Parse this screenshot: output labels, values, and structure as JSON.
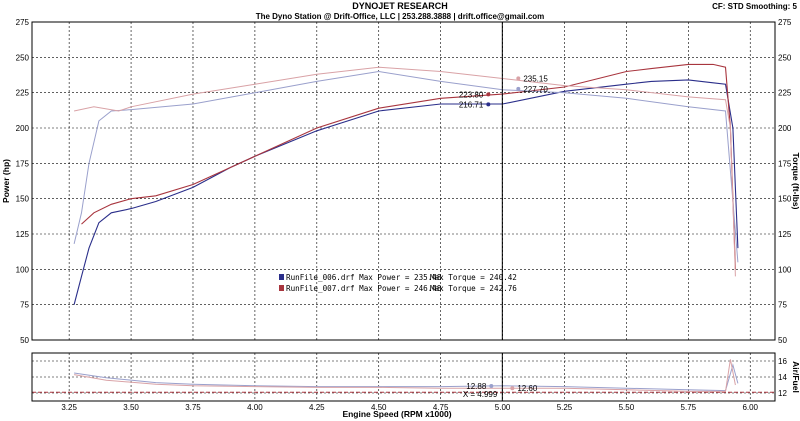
{
  "header": {
    "title": "DYNOJET RESEARCH",
    "subtitle": "The Dyno Station @ Drift-Office, LLC | 253.288.3888 | drift.office@gmail.com",
    "settings": "CF: STD  Smoothing: 5"
  },
  "colors": {
    "run1": "#2a2e8a",
    "run2": "#a8353e",
    "run1_light": "#9aa0cc",
    "run2_light": "#d9a2a6",
    "cursor": "#000000"
  },
  "chart_data": {
    "type": "line",
    "xlabel": "Engine Speed (RPM x1000)",
    "ylabel_left": "Power (hp)",
    "ylabel_right": "Torque (ft-lbs)",
    "ylabel_right2": "Air/Fuel",
    "xlim": [
      3.1,
      6.1
    ],
    "ylim_main": [
      50,
      275
    ],
    "ylim_afr": [
      11,
      17
    ],
    "x_ticks": [
      "3.25",
      "3.50",
      "3.75",
      "4.00",
      "4.25",
      "4.50",
      "4.75",
      "5.00",
      "5.25",
      "5.50",
      "5.75",
      "6.00"
    ],
    "y_ticks_main": [
      "50",
      "75",
      "100",
      "125",
      "150",
      "175",
      "200",
      "225",
      "250",
      "275"
    ],
    "y_ticks_afr": [
      "12",
      "14",
      "16"
    ],
    "grid": true,
    "legend": [
      {
        "label": "RunFile_006.drf Max Power = 235.48",
        "torque": "Max Torque = 240.42"
      },
      {
        "label": "RunFile_007.drf Max Power = 246.48",
        "torque": "Max Torque = 242.76"
      }
    ],
    "cursor": {
      "x": 4.999,
      "label": "X = 4.999",
      "readouts_main": [
        "235.15",
        "227.70",
        "223.80",
        "216.71"
      ],
      "readouts_afr": [
        "12.88",
        "12.60"
      ]
    },
    "series": [
      {
        "name": "RunFile_006.drf",
        "kind": "power",
        "x": [
          3.27,
          3.3,
          3.33,
          3.37,
          3.42,
          3.5,
          3.6,
          3.75,
          3.9,
          4.0,
          4.25,
          4.5,
          4.75,
          5.0,
          5.25,
          5.5,
          5.6,
          5.75,
          5.85,
          5.9,
          5.93,
          5.95
        ],
        "y": [
          75,
          95,
          115,
          133,
          140,
          143,
          148,
          158,
          172,
          180,
          198,
          212,
          217,
          217,
          226,
          231,
          233,
          234,
          232,
          231,
          200,
          115
        ]
      },
      {
        "name": "RunFile_007.drf",
        "kind": "power",
        "x": [
          3.3,
          3.35,
          3.42,
          3.5,
          3.6,
          3.75,
          3.9,
          4.0,
          4.25,
          4.5,
          4.75,
          5.0,
          5.25,
          5.5,
          5.6,
          5.75,
          5.85,
          5.9,
          5.92,
          5.94
        ],
        "y": [
          132,
          140,
          146,
          150,
          152,
          160,
          172,
          180,
          200,
          214,
          221,
          224,
          229,
          240,
          242,
          245,
          245,
          243,
          200,
          100
        ]
      },
      {
        "name": "RunFile_006.drf",
        "kind": "torque",
        "x": [
          3.27,
          3.3,
          3.33,
          3.37,
          3.42,
          3.5,
          3.75,
          4.0,
          4.25,
          4.5,
          4.75,
          5.0,
          5.25,
          5.5,
          5.75,
          5.9,
          5.95
        ],
        "y": [
          118,
          140,
          175,
          205,
          212,
          213,
          217,
          225,
          233,
          240,
          233,
          227,
          225,
          221,
          215,
          212,
          105
        ]
      },
      {
        "name": "RunFile_007.drf",
        "kind": "torque",
        "x": [
          3.27,
          3.35,
          3.45,
          3.5,
          3.75,
          4.0,
          4.25,
          4.5,
          4.75,
          5.0,
          5.25,
          5.5,
          5.75,
          5.9,
          5.92,
          5.94
        ],
        "y": [
          212,
          215,
          212,
          215,
          224,
          231,
          238,
          243,
          240,
          235,
          230,
          227,
          222,
          220,
          200,
          95
        ]
      },
      {
        "name": "RunFile_006.drf",
        "kind": "afr",
        "x": [
          3.27,
          3.4,
          3.6,
          3.75,
          4.0,
          4.25,
          4.5,
          4.75,
          5.0,
          5.25,
          5.5,
          5.75,
          5.9,
          5.93,
          5.95
        ],
        "y": [
          14.5,
          13.9,
          13.3,
          13.1,
          12.9,
          12.8,
          12.8,
          12.8,
          12.9,
          12.8,
          12.6,
          12.4,
          12.3,
          15.5,
          13.2
        ]
      },
      {
        "name": "RunFile_007.drf",
        "kind": "afr",
        "x": [
          3.27,
          3.4,
          3.6,
          3.75,
          4.0,
          4.25,
          4.5,
          4.75,
          5.0,
          5.25,
          5.5,
          5.75,
          5.9,
          5.92,
          5.94
        ],
        "y": [
          14.3,
          13.6,
          13.1,
          12.9,
          12.8,
          12.7,
          12.7,
          12.6,
          12.6,
          12.6,
          12.4,
          12.2,
          12.2,
          16.2,
          13.0
        ]
      }
    ]
  }
}
